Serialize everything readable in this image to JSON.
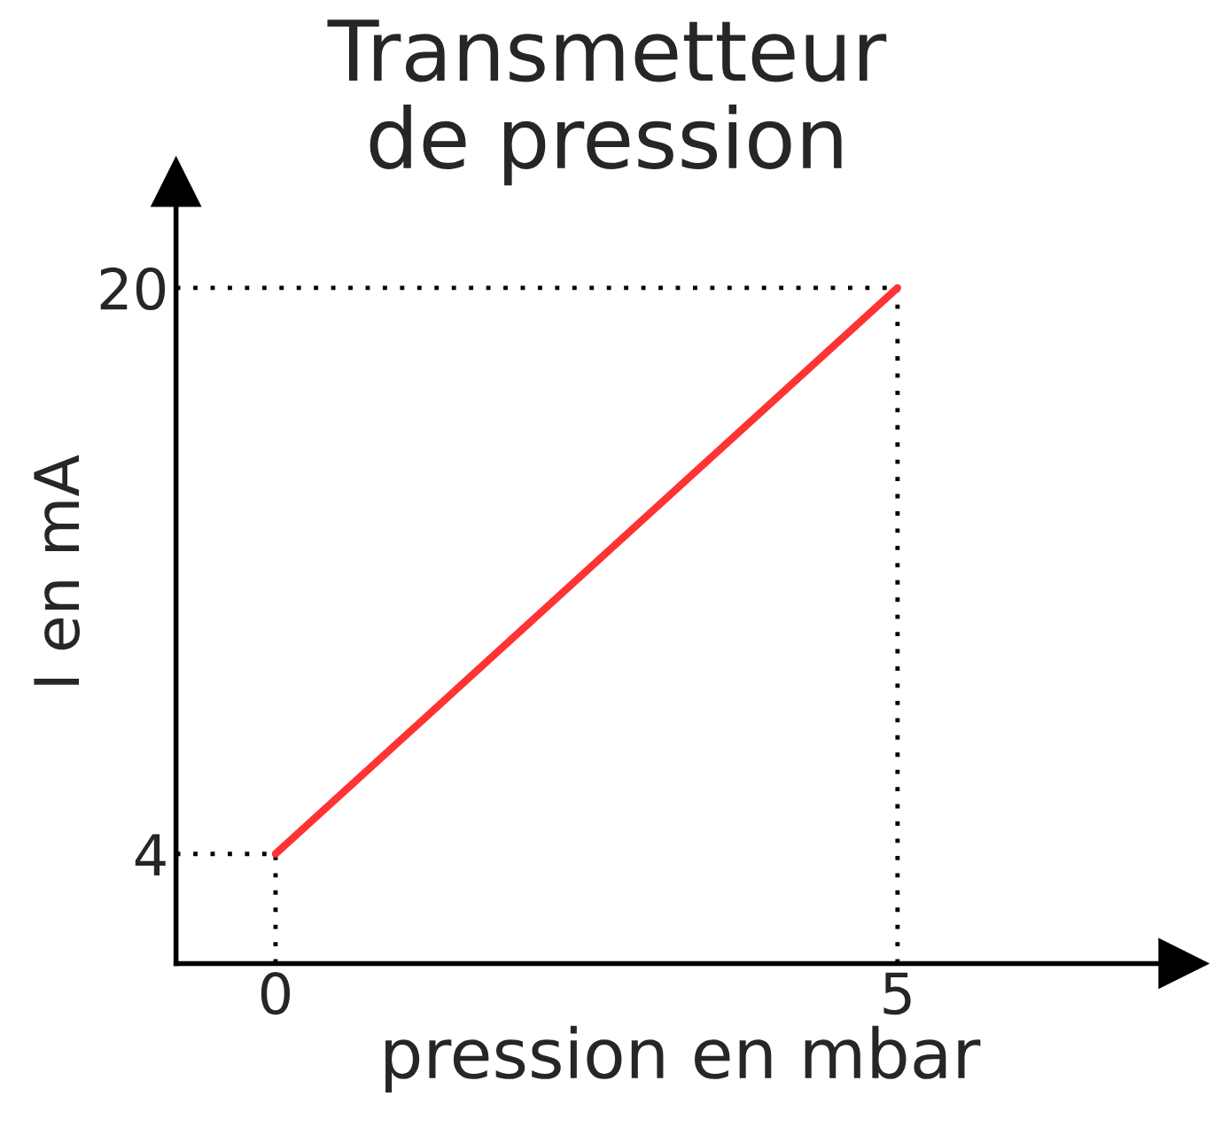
{
  "chart_data": {
    "type": "line",
    "title": "Transmetteur\nde pression",
    "xlabel": "pression en mbar",
    "ylabel": "I en mA",
    "x": [
      0,
      5
    ],
    "series": [
      {
        "color": "#ff3333",
        "values": [
          4,
          20
        ]
      }
    ],
    "xlim": [
      -0.8,
      7.3
    ],
    "ylim": [
      0.9,
      23
    ],
    "xticks": [
      0,
      5
    ],
    "yticks": [
      4,
      20
    ],
    "ref_lines": [
      {
        "axis": "y",
        "value": 20,
        "line_style": "dotted",
        "color": "#000000"
      },
      {
        "axis": "x",
        "value": 5,
        "line_style": "dotted",
        "color": "#000000"
      },
      {
        "axis": "y",
        "value": 4,
        "line_style": "dotted",
        "color": "#000000"
      },
      {
        "axis": "x",
        "value": 0,
        "line_style": "dotted",
        "color": "#000000"
      }
    ],
    "grid": false,
    "marker": "none",
    "line_style": "solid"
  }
}
